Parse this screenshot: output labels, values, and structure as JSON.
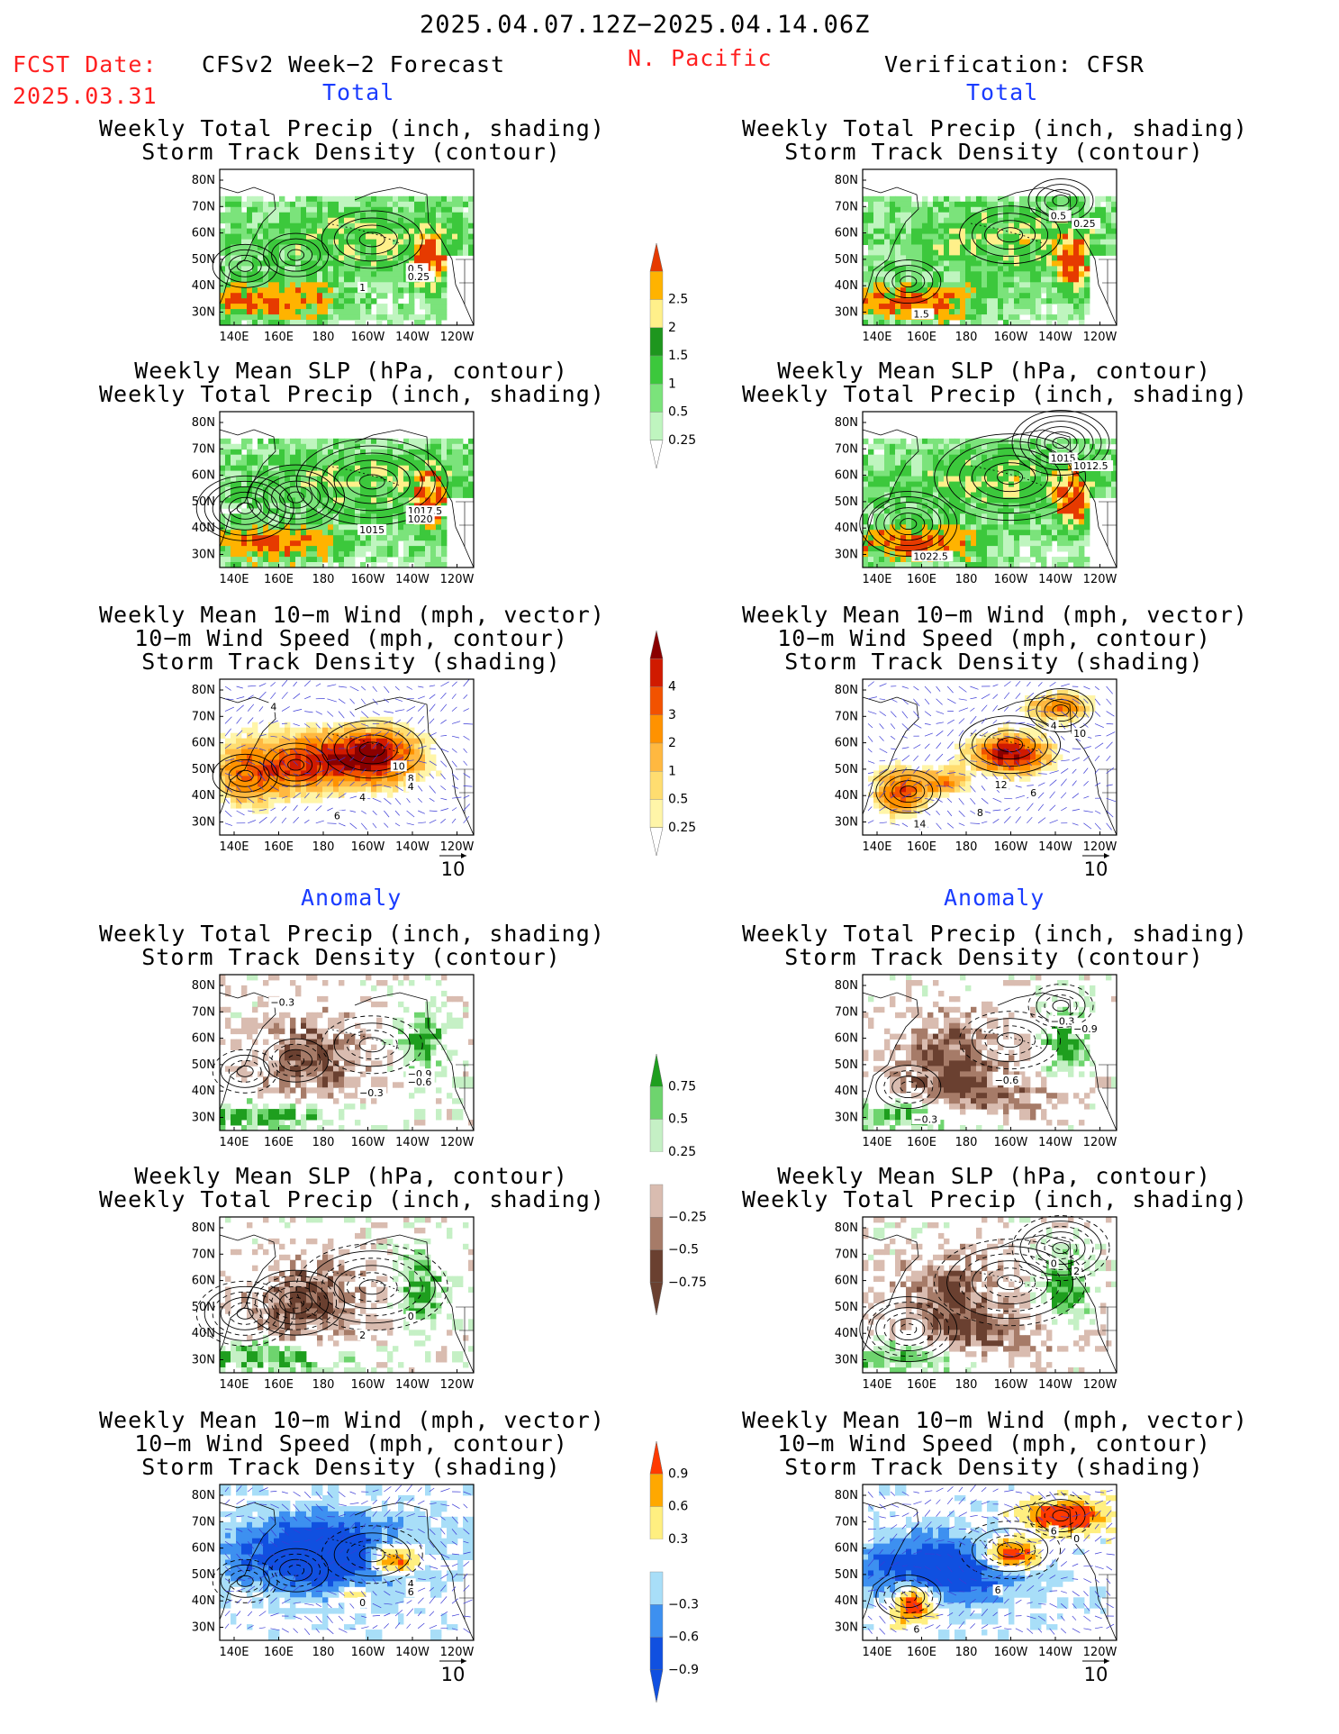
{
  "header": {
    "period": "2025.04.07.12Z−2025.04.14.06Z",
    "fcst_label": "FCST Date:",
    "fcst_date": "2025.03.31",
    "model": "CFSv2 Week−2 Forecast",
    "region": "N. Pacific",
    "verification": "Verification: CFSR"
  },
  "sections": {
    "total": "Total",
    "anomaly": "Anomaly"
  },
  "panel_titles": {
    "precip_storm": [
      "Weekly Total Precip (inch, shading)",
      "Storm Track Density (contour)"
    ],
    "slp_precip": [
      "Weekly Mean SLP (hPa, contour)",
      "Weekly Total Precip (inch, shading)"
    ],
    "wind_storm": [
      "Weekly Mean 10−m Wind (mph, vector)",
      "10−m Wind Speed (mph, contour)",
      "Storm Track Density (shading)"
    ]
  },
  "colors": {
    "red_text": "#ff2020",
    "blue_text": "#1a3cff",
    "precip_scale": [
      "#bff5bf",
      "#7be37b",
      "#3cc83c",
      "#1e961e",
      "#fff08a",
      "#ffb300",
      "#e63a00"
    ],
    "storm_scale": [
      "#fff5a8",
      "#ffdd70",
      "#ffb840",
      "#ff9200",
      "#f25200",
      "#d01a00",
      "#8a0000"
    ],
    "precip_anom_scale": [
      "#6a4030",
      "#a67b68",
      "#d9bcb0",
      "#ffffff",
      "#c5f0c5",
      "#6ed46e",
      "#1e9e1e"
    ],
    "storm_anom_scale": [
      "#1050e0",
      "#3d90f0",
      "#a8def8",
      "#ffffff",
      "#ffef80",
      "#ffa800",
      "#ff3a00"
    ]
  },
  "map_axes": {
    "lat_labels": [
      "80N",
      "70N",
      "60N",
      "50N",
      "40N",
      "30N"
    ],
    "lon_labels": [
      "140E",
      "160E",
      "180",
      "160W",
      "140W",
      "120W"
    ],
    "vector_ref": "10"
  },
  "chart_data": [
    {
      "type": "heatmap",
      "title": "Weekly Total Precip (inch, shading) / Storm Track Density (contour)",
      "column": "CFSv2 Week−2 Forecast",
      "section": "Total",
      "contour_labels": [
        "1",
        "0.5",
        "0.25"
      ]
    },
    {
      "type": "heatmap",
      "title": "Weekly Total Precip (inch, shading) / Storm Track Density (contour)",
      "column": "Verification: CFSR",
      "section": "Total",
      "contour_labels": [
        "0.5",
        "0.25",
        "1.5"
      ]
    },
    {
      "type": "heatmap",
      "title": "Weekly Mean SLP (hPa, contour) / Weekly Total Precip (inch, shading)",
      "column": "CFSv2 Week−2 Forecast",
      "section": "Total",
      "contour_labels": [
        "1015",
        "1017.5",
        "1020"
      ]
    },
    {
      "type": "heatmap",
      "title": "Weekly Mean SLP (hPa, contour) / Weekly Total Precip (inch, shading)",
      "column": "Verification: CFSR",
      "section": "Total",
      "contour_labels": [
        "1015",
        "1012.5",
        "1022.5"
      ]
    },
    {
      "type": "heatmap",
      "title": "Weekly Mean 10−m Wind / 10−m Wind Speed / Storm Track Density",
      "column": "CFSv2 Week−2 Forecast",
      "section": "Total",
      "contour_labels": [
        "4",
        "8",
        "4",
        "4",
        "10",
        "6"
      ]
    },
    {
      "type": "heatmap",
      "title": "Weekly Mean 10−m Wind / 10−m Wind Speed / Storm Track Density",
      "column": "Verification: CFSR",
      "section": "Total",
      "contour_labels": [
        "4",
        "10",
        "14",
        "12",
        "6",
        "8"
      ]
    },
    {
      "type": "heatmap",
      "title": "Weekly Total Precip (inch, shading) / Storm Track Density (contour)",
      "column": "CFSv2 Week−2 Forecast",
      "section": "Anomaly",
      "contour_labels": [
        "−0.3",
        "−0.9",
        "−0.6",
        "−0.3"
      ]
    },
    {
      "type": "heatmap",
      "title": "Weekly Total Precip (inch, shading) / Storm Track Density (contour)",
      "column": "Verification: CFSR",
      "section": "Anomaly",
      "contour_labels": [
        "−0.3",
        "−0.9",
        "−0.3",
        "−0.6"
      ]
    },
    {
      "type": "heatmap",
      "title": "Weekly Mean SLP (hPa, contour) / Weekly Total Precip (inch, shading)",
      "column": "CFSv2 Week−2 Forecast",
      "section": "Anomaly",
      "contour_labels": [
        "2",
        "0"
      ]
    },
    {
      "type": "heatmap",
      "title": "Weekly Mean SLP (hPa, contour) / Weekly Total Precip (inch, shading)",
      "column": "Verification: CFSR",
      "section": "Anomaly",
      "contour_labels": [
        "0",
        "2"
      ]
    },
    {
      "type": "heatmap",
      "title": "Weekly Mean 10−m Wind / 10−m Wind Speed / Storm Track Density",
      "column": "CFSv2 Week−2 Forecast",
      "section": "Anomaly",
      "contour_labels": [
        "0",
        "4",
        "6"
      ]
    },
    {
      "type": "heatmap",
      "title": "Weekly Mean 10−m Wind / 10−m Wind Speed / Storm Track Density",
      "column": "Verification: CFSR",
      "section": "Anomaly",
      "contour_labels": [
        "6",
        "0",
        "6",
        "6"
      ]
    }
  ],
  "colorbars": [
    {
      "name": "precip_total",
      "labels": [
        "0.25",
        "0.5",
        "1",
        "1.5",
        "2",
        "2.5"
      ]
    },
    {
      "name": "storm_total",
      "labels": [
        "0.25",
        "0.5",
        "1",
        "2",
        "3",
        "4"
      ]
    },
    {
      "name": "precip_anomaly",
      "labels": [
        "−0.75",
        "−0.5",
        "−0.25",
        "0.25",
        "0.5",
        "0.75"
      ]
    },
    {
      "name": "storm_anomaly",
      "labels": [
        "−0.9",
        "−0.6",
        "−0.3",
        "0.3",
        "0.6",
        "0.9"
      ]
    }
  ]
}
